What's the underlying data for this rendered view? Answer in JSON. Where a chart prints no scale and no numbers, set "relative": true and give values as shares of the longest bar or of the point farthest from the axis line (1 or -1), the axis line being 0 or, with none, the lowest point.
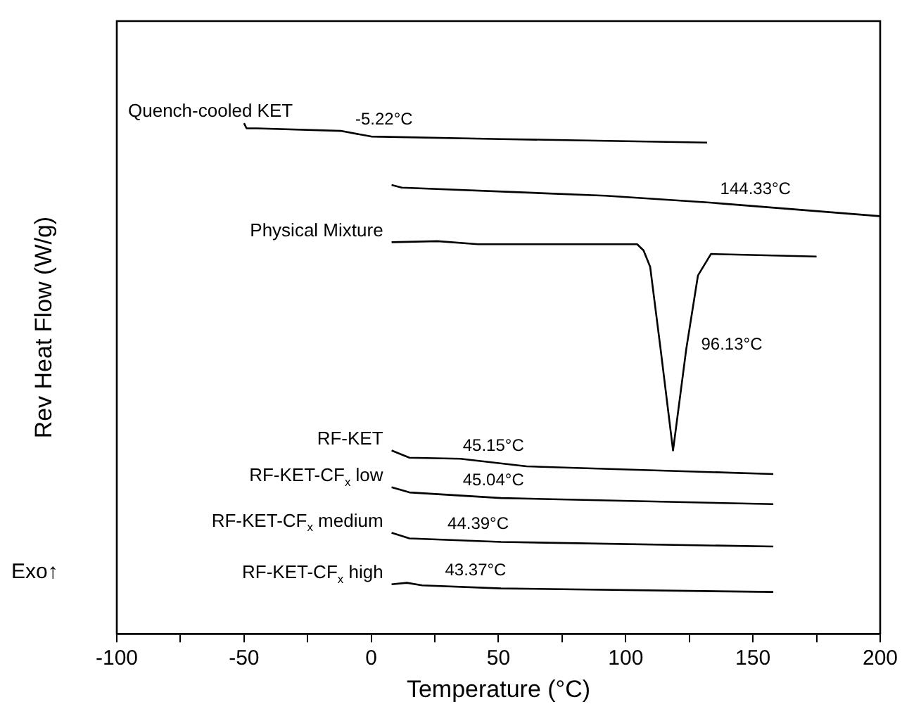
{
  "chart_data": {
    "type": "line",
    "xlabel": "Temperature (°C)",
    "ylabel": "Rev Heat Flow (W/g)",
    "relative": true,
    "legend": false,
    "grid": false,
    "marker": "none",
    "line_style": "solid",
    "xlim": [
      -100,
      200
    ],
    "xticks": [
      -100,
      {
        "value": -75,
        "label": null
      },
      -50,
      {
        "value": -25,
        "label": null
      },
      0,
      {
        "value": 25,
        "label": null
      },
      50,
      {
        "value": 75,
        "label": null
      },
      100,
      {
        "value": 125,
        "label": null
      },
      150,
      {
        "value": 175,
        "label": null
      },
      200
    ],
    "series": [
      {
        "name": "Quench-cooled KET",
        "color": "#000000",
        "x": [
          -50,
          -49,
          -45,
          -12,
          0,
          51,
          132
        ],
        "values": [
          1.0,
          0.99,
          0.99,
          0.985,
          0.974,
          0.969,
          0.962
        ]
      },
      {
        "color": "#000000",
        "x": [
          8,
          12,
          92,
          132,
          200
        ],
        "values": [
          0.879,
          0.874,
          0.858,
          0.845,
          0.818
        ]
      },
      {
        "name": "Physical Mixture",
        "color": "#000000",
        "x": [
          8,
          26,
          42,
          103,
          104.5,
          107,
          109.6,
          113.7,
          118.6,
          123.8,
          128.4,
          133.5,
          175
        ],
        "values": [
          0.767,
          0.769,
          0.763,
          0.763,
          0.763,
          0.751,
          0.719,
          0.558,
          0.359,
          0.558,
          0.702,
          0.744,
          0.739
        ]
      },
      {
        "name": "RF-KET",
        "color": "#000000",
        "x": [
          8,
          15,
          35,
          61,
          158
        ],
        "values": [
          0.359,
          0.345,
          0.343,
          0.328,
          0.313
        ]
      },
      {
        "name": "RF-KET-CF$_{x}$ low",
        "color": "#000000",
        "x": [
          8,
          15,
          51,
          158
        ],
        "values": [
          0.287,
          0.277,
          0.266,
          0.254
        ]
      },
      {
        "name": "RF-KET-CF$_{x}$ medium",
        "color": "#000000",
        "x": [
          8,
          15,
          51,
          158
        ],
        "values": [
          0.198,
          0.187,
          0.18,
          0.171
        ]
      },
      {
        "name": "RF-KET-CF$_{x}$ high",
        "color": "#000000",
        "x": [
          8,
          14,
          20,
          51,
          158
        ],
        "values": [
          0.097,
          0.1,
          0.095,
          0.089,
          0.082
        ]
      }
    ],
    "annotations": [
      {
        "text": "-5.22°C",
        "x": 5,
        "y": 0.974
      },
      {
        "text": "144.33°C",
        "x": 151,
        "y": 0.837
      },
      {
        "text": "96.13°C",
        "x": 124.1,
        "y": 0.566
      },
      {
        "text": "45.15°C",
        "x": 48,
        "y": 0.335
      },
      {
        "text": "45.04°C",
        "x": 48,
        "y": 0.267
      },
      {
        "text": "44.39°C",
        "x": 42,
        "y": 0.182
      },
      {
        "text": "43.37°C",
        "x": 41,
        "y": 0.091
      },
      "Exo↑"
    ]
  }
}
